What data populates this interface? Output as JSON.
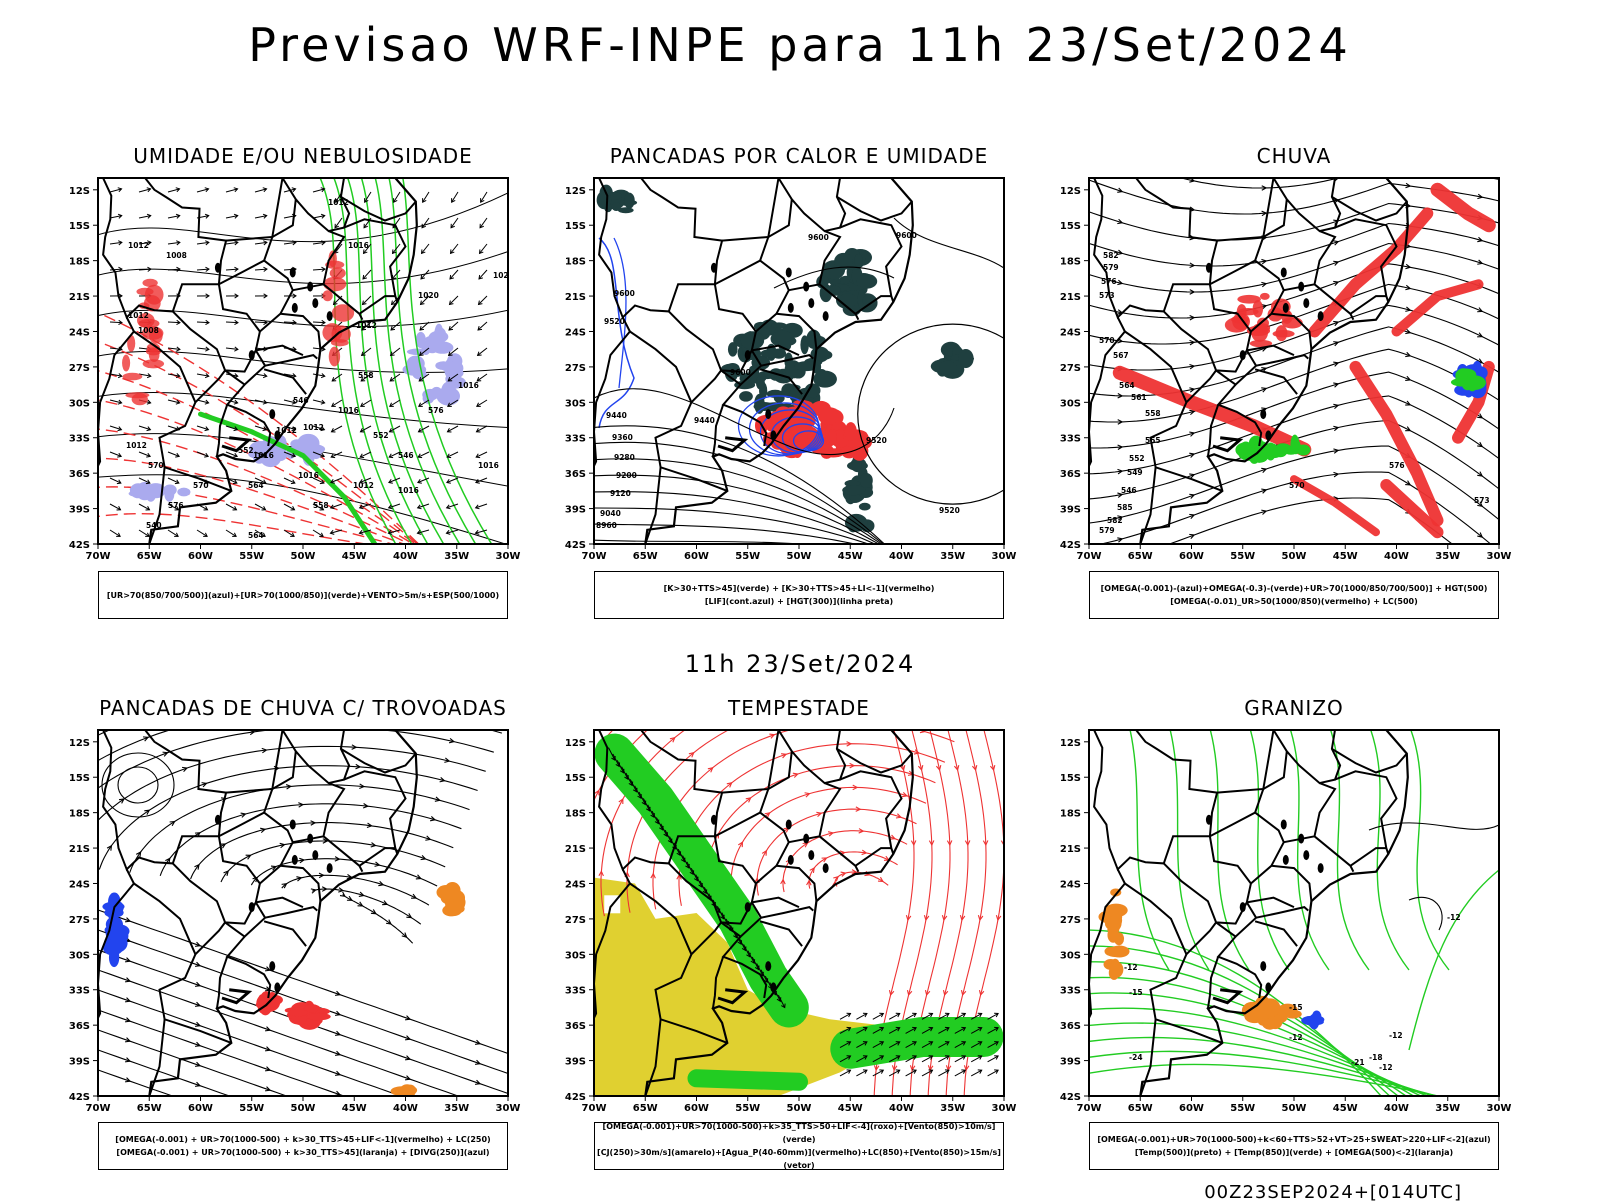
{
  "title": "Previsao WRF-INPE  para 11h 23/Set/2024",
  "mid_label": "11h 23/Set/2024",
  "footer": "00Z23SEP2024+[014UTC]",
  "axes": {
    "lat_ticks": [
      "12S",
      "15S",
      "18S",
      "21S",
      "24S",
      "27S",
      "30S",
      "33S",
      "36S",
      "39S",
      "42S"
    ],
    "lon_ticks": [
      "70W",
      "65W",
      "60W",
      "55W",
      "50W",
      "45W",
      "40W",
      "35W",
      "30W"
    ]
  },
  "colors": {
    "green": "#22cc22",
    "red": "#ee3333",
    "blue": "#2244ee",
    "lavender": "#aaaaee",
    "dark_teal": "#1f3f3f",
    "yellow": "#e0d030",
    "orange": "#ee8822"
  },
  "panels": [
    {
      "title": "UMIDADE E/OU NEBULOSIDADE",
      "legend": [
        "[UR>70(850/700/500)](azul)+[UR>70(1000/850)](verde)+VENTO>5m/s+ESP(500/1000)"
      ],
      "contour_labels": [
        "1012",
        "1012",
        "1016",
        "1020",
        "1020",
        "1016",
        "1016",
        "1012",
        "1012",
        "1008",
        "1008",
        "1012",
        "1016",
        "1016",
        "1012",
        "1012",
        "1012",
        "1016",
        "1016",
        "576",
        "570",
        "564",
        "558",
        "552",
        "546",
        "540",
        "576",
        "570",
        "564",
        "558",
        "552",
        "546"
      ]
    },
    {
      "title": "PANCADAS POR CALOR E UMIDADE",
      "legend": [
        "[K>30+TTS>45](verde)  +  [K>30+TTS>45+LI<-1](vermelho)",
        "[LIF](cont.azul)  +  [HGT(300)](linha preta)"
      ],
      "contour_labels": [
        "9600",
        "9600",
        "9600",
        "9520",
        "9600",
        "9440",
        "9360",
        "9280",
        "9200",
        "9120",
        "9040",
        "8960",
        "9520",
        "9520",
        "9440"
      ]
    },
    {
      "title": "CHUVA",
      "legend": [
        "[OMEGA(-0.001)-(azul)+OMEGA(-0.3)-(verde)+UR>70(1000/850/700/500)]  +  HGT(500)",
        "[OMEGA(-0.01)_UR>50(1000/850)(vermelho)  +  LC(500)"
      ],
      "contour_labels": [
        "582",
        "579",
        "576",
        "573",
        "570",
        "567",
        "564",
        "561",
        "558",
        "555",
        "552",
        "549",
        "546",
        "585",
        "582",
        "579",
        "576",
        "573",
        "570"
      ]
    },
    {
      "title": "PANCADAS DE CHUVA C/ TROVOADAS",
      "legend": [
        "[OMEGA(-0.001)  +  UR>70(1000-500)  +  k>30_TTS>45+LIF<-1](vermelho)  +  LC(250)",
        "[OMEGA(-0.001)  +  UR>70(1000-500)  +  k>30_TTS>45](laranja)  +  [DIVG(250)](azul)"
      ]
    },
    {
      "title": "TEMPESTADE",
      "legend": [
        "[OMEGA(-0.001)+UR>70(1000-500)+k>35_TTS>50+LIF<-4](roxo)+[Vento(850)>10m/s](verde)",
        "[CJ(250)>30m/s](amarelo)+[Agua_P(40-60mm)](vermelho)+LC(850)+[Vento(850)>15m/s](vetor)"
      ]
    },
    {
      "title": "GRANIZO",
      "legend": [
        "[OMEGA(-0.001)+UR>70(1000-500)+k<60+TTS>52+VT>25+SWEAT>220+LIF<-2](azul)",
        "[Temp(500)](preto)  +  [Temp(850)](verde)  +  [OMEGA(500)<-2](laranja)"
      ],
      "contour_labels": [
        "-12",
        "-12",
        "-12",
        "-12",
        "-15",
        "-15",
        "-18",
        "-21",
        "-24",
        "-12"
      ]
    }
  ]
}
